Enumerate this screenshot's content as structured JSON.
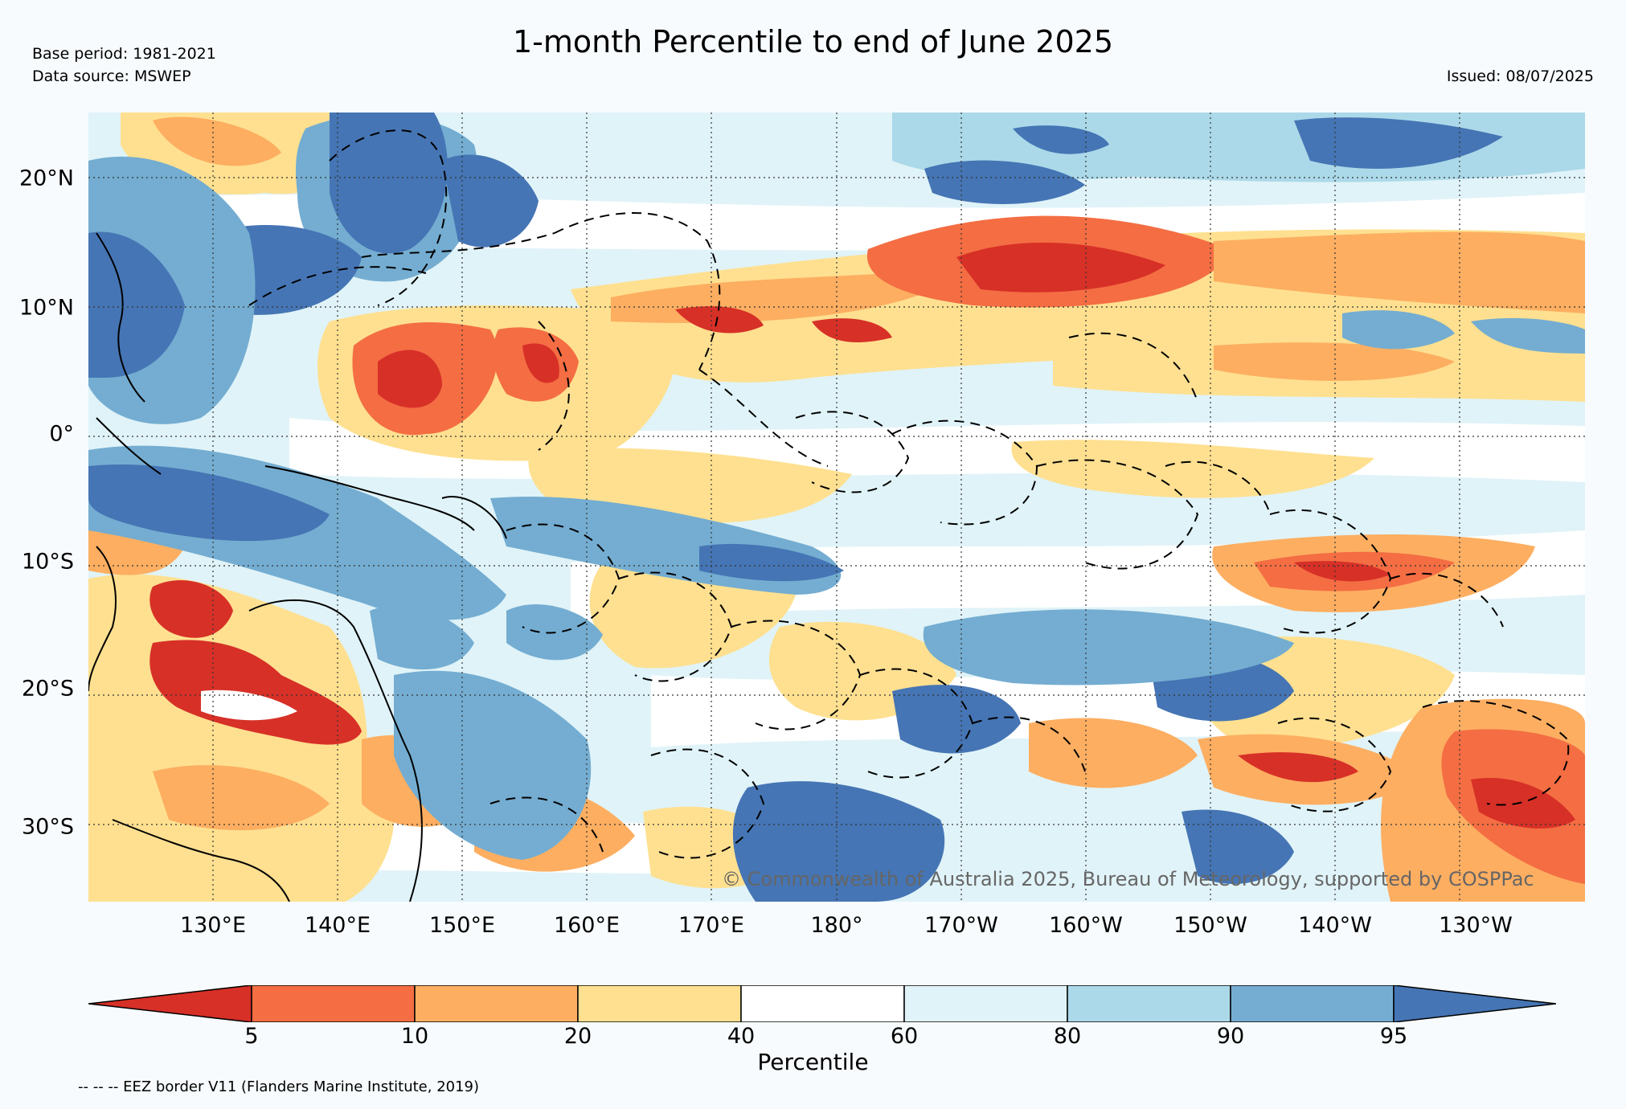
{
  "header": {
    "title": "1-month Percentile to end of June 2025",
    "base_period": "Base period: 1981-2021",
    "data_source": "Data source: MSWEP",
    "issued": "Issued: 08/07/2025"
  },
  "map": {
    "lon_range": [
      120,
      240
    ],
    "lat_range": [
      -36,
      25
    ],
    "lat_ticks": [
      "20°N",
      "10°N",
      "0°",
      "10°S",
      "20°S",
      "30°S"
    ],
    "lon_ticks": [
      "130°E",
      "140°E",
      "150°E",
      "160°E",
      "170°E",
      "180°",
      "170°W",
      "160°W",
      "150°W",
      "140°W",
      "130°W"
    ],
    "copyright": "© Commonwealth of Australia 2025, Bureau of Meteorology, supported by COSPPac"
  },
  "colorbar": {
    "label": "Percentile",
    "ticks": [
      "5",
      "10",
      "20",
      "40",
      "60",
      "80",
      "90",
      "95"
    ],
    "colors": {
      "below_5": "#d73027",
      "5_10": "#f46d43",
      "10_20": "#fdae61",
      "20_40": "#fee090",
      "40_60": "#ffffff",
      "60_80": "#e0f3f8",
      "80_90": "#abd9e9",
      "90_95": "#74add1",
      "above_95": "#4575b4"
    }
  },
  "footer": {
    "eez_note": "-- -- -- EEZ border V11 (Flanders Marine Institute, 2019)"
  }
}
